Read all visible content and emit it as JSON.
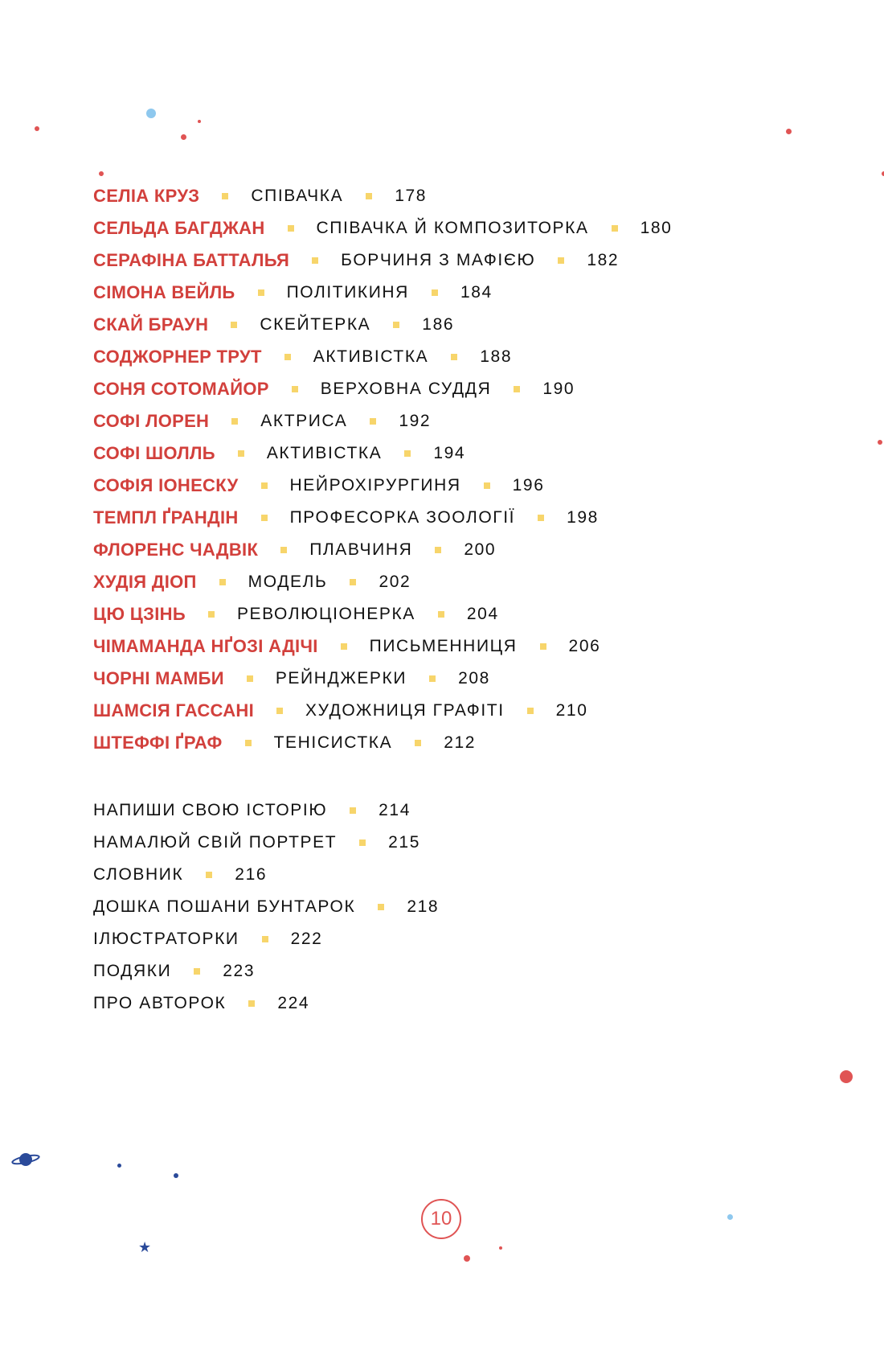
{
  "entries": [
    {
      "name": "СЕЛІА КРУЗ",
      "desc": "СПІВАЧКА",
      "page": "178"
    },
    {
      "name": "СЕЛЬДА БАГДЖАН",
      "desc": "СПІВАЧКА Й КОМПОЗИТОРКА",
      "page": "180"
    },
    {
      "name": "СЕРАФІНА БАТТАЛЬЯ",
      "desc": "БОРЧИНЯ З МАФІЄЮ",
      "page": "182"
    },
    {
      "name": "СІМОНА ВЕЙЛЬ",
      "desc": "ПОЛІТИКИНЯ",
      "page": "184"
    },
    {
      "name": "СКАЙ БРАУН",
      "desc": "СКЕЙТЕРКА",
      "page": "186"
    },
    {
      "name": "СОДЖОРНЕР ТРУТ",
      "desc": "АКТИВІСТКА",
      "page": "188"
    },
    {
      "name": "СОНЯ СОТОМАЙОР",
      "desc": "ВЕРХОВНА СУДДЯ",
      "page": "190"
    },
    {
      "name": "СОФІ ЛОРЕН",
      "desc": "АКТРИСА",
      "page": "192"
    },
    {
      "name": "СОФІ ШОЛЛЬ",
      "desc": "АКТИВІСТКА",
      "page": "194"
    },
    {
      "name": "СОФІЯ ІОНЕСКУ",
      "desc": "НЕЙРОХІРУРГИНЯ",
      "page": "196"
    },
    {
      "name": "ТЕМПЛ ҐРАНДІН",
      "desc": "ПРОФЕСОРКА ЗООЛОГІЇ",
      "page": "198"
    },
    {
      "name": "ФЛОРЕНС ЧАДВІК",
      "desc": "ПЛАВЧИНЯ",
      "page": "200"
    },
    {
      "name": "ХУДІЯ ДІОП",
      "desc": "МОДЕЛЬ",
      "page": "202"
    },
    {
      "name": "ЦЮ ЦЗІНЬ",
      "desc": "РЕВОЛЮЦІОНЕРКА",
      "page": "204"
    },
    {
      "name": "ЧІМАМАНДА НҐОЗІ АДІЧІ",
      "desc": "ПИСЬМЕННИЦЯ",
      "page": "206"
    },
    {
      "name": "ЧОРНІ МАМБИ",
      "desc": "РЕЙНДЖЕРКИ",
      "page": "208"
    },
    {
      "name": "ШАМСІЯ ГАССАНІ",
      "desc": "ХУДОЖНИЦЯ ГРАФІТІ",
      "page": "210"
    },
    {
      "name": "ШТЕФФІ ҐРАФ",
      "desc": "ТЕНІСИСТКА",
      "page": "212"
    }
  ],
  "extras": [
    {
      "title": "НАПИШИ СВОЮ ІСТОРІЮ",
      "page": "214"
    },
    {
      "title": "НАМАЛЮЙ СВІЙ ПОРТРЕТ",
      "page": "215"
    },
    {
      "title": "СЛОВНИК",
      "page": "216"
    },
    {
      "title": "ДОШКА ПОШАНИ БУНТАРОК",
      "page": "218"
    },
    {
      "title": "ІЛЮСТРАТОРКИ",
      "page": "222"
    },
    {
      "title": "ПОДЯКИ",
      "page": "223"
    },
    {
      "title": "ПРО АВТОРОК",
      "page": "224"
    }
  ],
  "page_number": "10",
  "colors": {
    "name": "#d2403c",
    "separator": "#f7d56b",
    "dot_red": "#e05454",
    "dot_blue": "#2a4a9a",
    "dot_lightblue": "#8ec8ee"
  }
}
